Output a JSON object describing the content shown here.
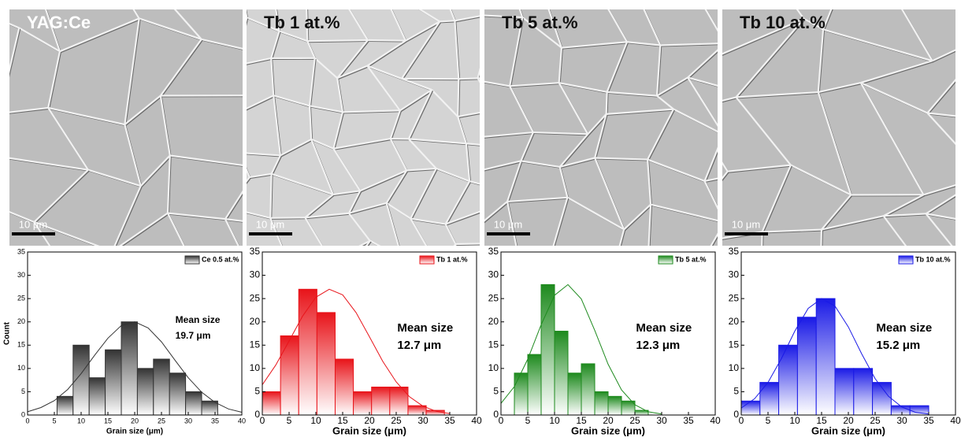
{
  "micrographs": [
    {
      "label": "YAG:Ce",
      "scale_bar": "10 μm"
    },
    {
      "label": "Tb 1 at.%",
      "scale_bar": "10 μm"
    },
    {
      "label": "Tb 5 at.%",
      "scale_bar": "10 μm"
    },
    {
      "label": "Tb 10 at.%",
      "scale_bar": "10 μm"
    }
  ],
  "chart_data": [
    {
      "type": "histogram",
      "ylabel": "Count",
      "xlabel": "Grain size (μm)",
      "bins": [
        5.5,
        8.5,
        11.5,
        14.5,
        17.5,
        20.5,
        23.5,
        26.5,
        29.5,
        32.5,
        35.5
      ],
      "series": [
        {
          "name": "Ce 0.5 at.%",
          "color": "#333333",
          "values": [
            4,
            15,
            8,
            14,
            20,
            10,
            12,
            9,
            5,
            3
          ]
        }
      ],
      "fit": {
        "x": [
          0,
          2.5,
          5,
          7.5,
          10,
          12.5,
          15,
          17.5,
          20,
          22.5,
          25,
          27.5,
          30,
          32.5,
          35,
          37.5,
          40
        ],
        "y": [
          0.7,
          1.6,
          3.1,
          5.5,
          8.9,
          12.8,
          16.5,
          19.2,
          20.0,
          18.7,
          15.7,
          11.8,
          8.0,
          4.9,
          2.7,
          1.3,
          0.6
        ]
      },
      "annotations": [
        "Mean size",
        "19.7 μm"
      ],
      "xlim": [
        0,
        40
      ],
      "ylim": [
        0,
        35
      ],
      "xticks": [
        0,
        5,
        10,
        15,
        20,
        25,
        30,
        35,
        40
      ],
      "yticks": [
        0,
        5,
        10,
        15,
        20,
        25,
        30,
        35
      ]
    },
    {
      "type": "histogram",
      "xlabel": "Grain size (μm)",
      "bins": [
        0,
        3.4,
        6.8,
        10.2,
        13.6,
        17,
        20.4,
        23.8,
        27.2,
        30.6,
        34
      ],
      "series": [
        {
          "name": "Tb 1 at.%",
          "color": "#e8141a",
          "values": [
            5,
            17,
            27,
            22,
            12,
            5,
            6,
            6,
            2,
            1
          ]
        }
      ],
      "fit": {
        "x": [
          0,
          2.5,
          5,
          7.5,
          10,
          12.5,
          15,
          17.5,
          20,
          22.5,
          25,
          27.5,
          30,
          32.5,
          35
        ],
        "y": [
          6.5,
          10.7,
          15.9,
          21.2,
          25.3,
          27.0,
          25.8,
          22.0,
          16.8,
          11.5,
          7.1,
          3.9,
          1.9,
          0.8,
          0.3
        ]
      },
      "annotations": [
        "Mean size",
        "12.7 μm"
      ],
      "xlim": [
        0,
        40
      ],
      "ylim": [
        0,
        35
      ],
      "xticks": [
        0,
        5,
        10,
        15,
        20,
        25,
        30,
        35,
        40
      ],
      "yticks": [
        0,
        5,
        10,
        15,
        20,
        25,
        30,
        35
      ]
    },
    {
      "type": "histogram",
      "xlabel": "Grain size (μm)",
      "bins": [
        2.5,
        5,
        7.5,
        10,
        12.5,
        15,
        17.5,
        20,
        22.5,
        25,
        27.5
      ],
      "series": [
        {
          "name": "Tb 5 at.%",
          "color": "#1e8a1e",
          "values": [
            9,
            13,
            28,
            18,
            9,
            11,
            5,
            4,
            3,
            1
          ]
        }
      ],
      "fit": {
        "x": [
          0,
          2.5,
          5,
          7.5,
          10,
          12.5,
          15,
          17.5,
          20,
          22.5,
          25,
          27.5,
          30
        ],
        "y": [
          2.5,
          6.1,
          12.0,
          19.4,
          25.7,
          28.0,
          24.9,
          18.2,
          10.9,
          5.4,
          2.2,
          0.7,
          0.2
        ]
      },
      "annotations": [
        "Mean size",
        "12.3 μm"
      ],
      "xlim": [
        0,
        40
      ],
      "ylim": [
        0,
        35
      ],
      "xticks": [
        0,
        5,
        10,
        15,
        20,
        25,
        30,
        35,
        40
      ],
      "yticks": [
        0,
        5,
        10,
        15,
        20,
        25,
        30,
        35
      ]
    },
    {
      "type": "histogram",
      "xlabel": "Grain size (μm)",
      "bins": [
        0,
        3.5,
        7,
        10.5,
        14,
        17.5,
        21,
        24.5,
        28,
        31.5,
        35
      ],
      "series": [
        {
          "name": "Tb 10 at.%",
          "color": "#1a1ae6",
          "values": [
            3,
            7,
            15,
            21,
            25,
            10,
            10,
            7,
            2,
            2
          ]
        }
      ],
      "fit": {
        "x": [
          0,
          2.5,
          5,
          7.5,
          10,
          12.5,
          15,
          17.5,
          20,
          22.5,
          25,
          27.5,
          30,
          32.5,
          35
        ],
        "y": [
          1.5,
          3.5,
          7.0,
          12.1,
          18.0,
          22.9,
          25.0,
          23.4,
          18.9,
          13.1,
          7.8,
          4.0,
          1.7,
          0.6,
          0.2
        ]
      },
      "annotations": [
        "Mean size",
        "15.2 μm"
      ],
      "xlim": [
        0,
        40
      ],
      "ylim": [
        0,
        35
      ],
      "xticks": [
        0,
        5,
        10,
        15,
        20,
        25,
        30,
        35,
        40
      ],
      "yticks": [
        0,
        5,
        10,
        15,
        20,
        25,
        30,
        35
      ]
    }
  ]
}
